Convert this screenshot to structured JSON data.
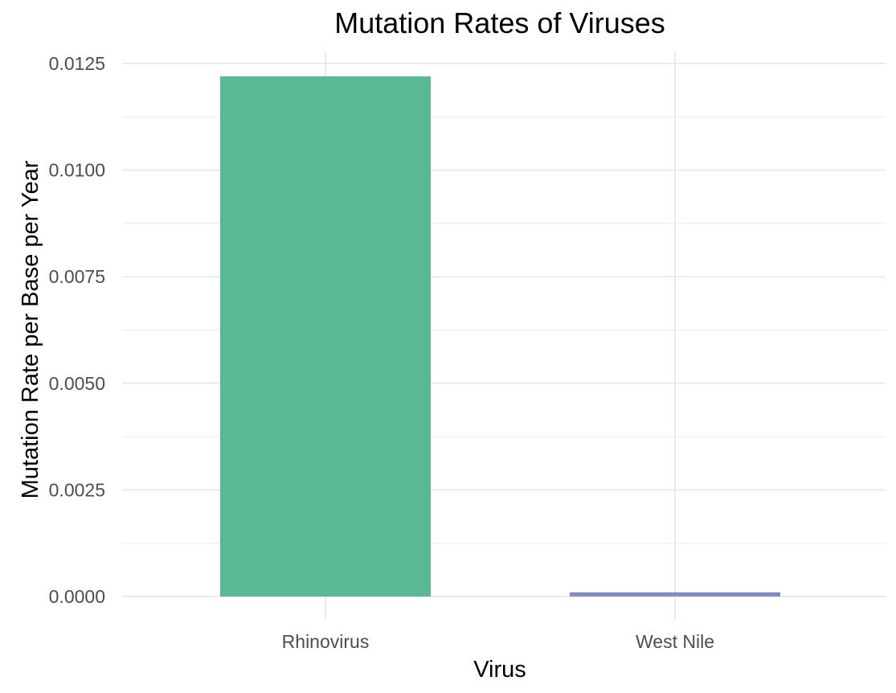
{
  "chart_data": {
    "type": "bar",
    "title": "Mutation Rates of Viruses",
    "xlabel": "Virus",
    "ylabel": "Mutation Rate per Base per Year",
    "categories": [
      "Rhinovirus",
      "West Nile"
    ],
    "values": [
      0.0122,
      0.0001
    ],
    "colors": [
      "#5ab994",
      "#7f8fc2"
    ],
    "ylim": [
      0,
      0.0125
    ],
    "yticks": [
      0,
      0.0025,
      0.005,
      0.0075,
      0.01,
      0.0125
    ],
    "ytick_labels": [
      "0.0000",
      "0.0025",
      "0.0050",
      "0.0075",
      "0.0100",
      "0.0125"
    ],
    "grid": true,
    "legend": "none"
  }
}
